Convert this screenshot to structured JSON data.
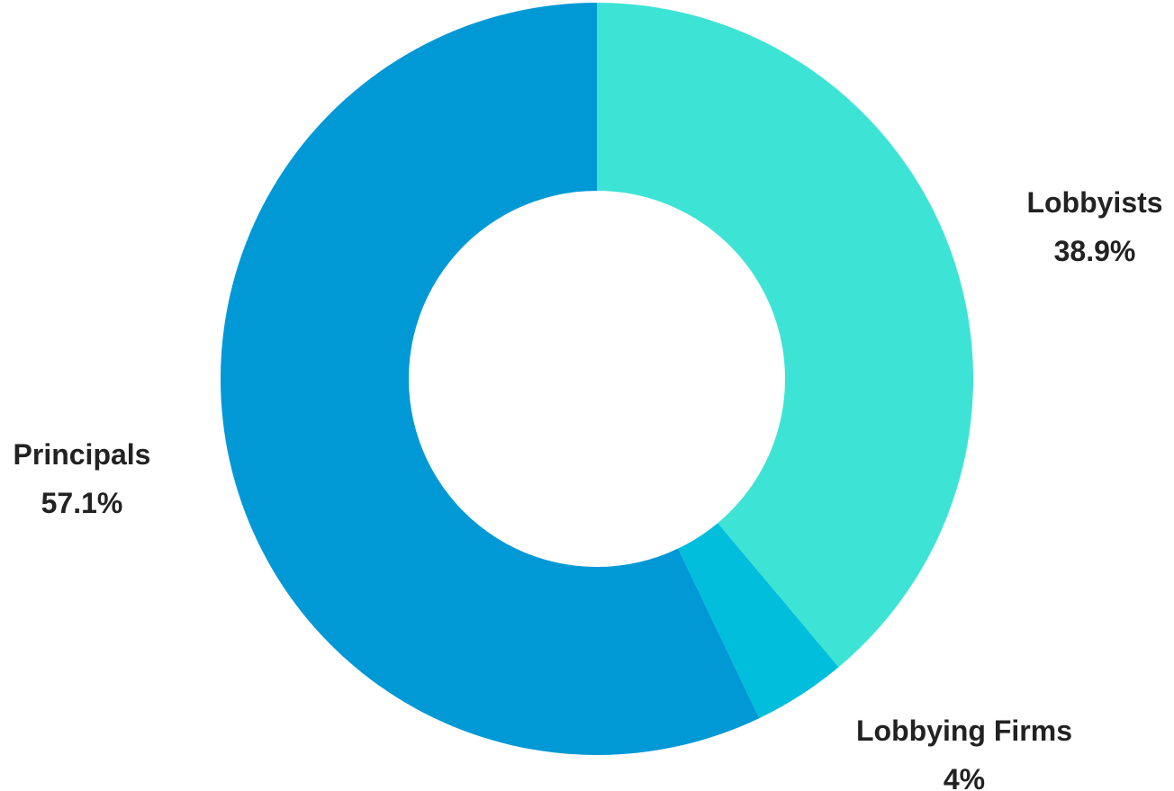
{
  "chart_data": {
    "type": "pie",
    "donut": true,
    "title": "",
    "slices": [
      {
        "label": "Lobbyists",
        "value": 38.9,
        "display": "38.9%",
        "color": "#3de4d6"
      },
      {
        "label": "Lobbying Firms",
        "value": 4,
        "display": "4%",
        "color": "#00bedc"
      },
      {
        "label": "Principals",
        "value": 57.1,
        "display": "57.1%",
        "color": "#0099d6"
      }
    ],
    "legend": "none",
    "labels": "outside"
  }
}
